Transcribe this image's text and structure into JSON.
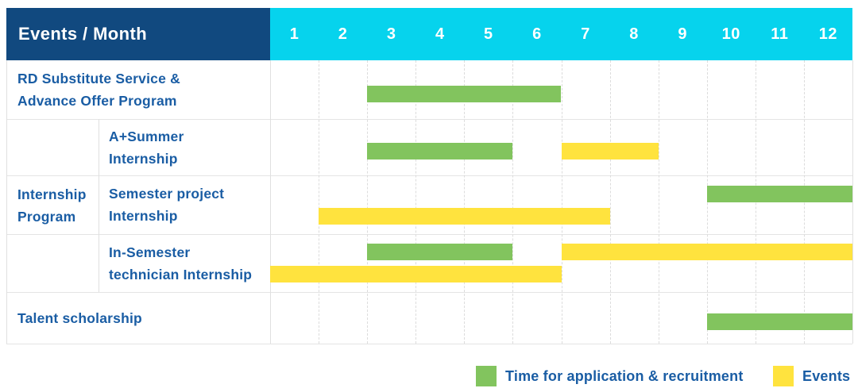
{
  "title_cell": "Events / Month",
  "months": [
    "1",
    "2",
    "3",
    "4",
    "5",
    "6",
    "7",
    "8",
    "9",
    "10",
    "11",
    "12"
  ],
  "group_cell": {
    "label_lines": [
      "Internship",
      "Program"
    ]
  },
  "rows": [
    {
      "id": "rd-substitute-service",
      "group": "",
      "label_lines": [
        "RD Substitute Service &",
        "Advance Offer Program"
      ],
      "bars": [
        {
          "kind": "application",
          "start": 3,
          "end": 6,
          "lane": "single"
        }
      ]
    },
    {
      "id": "a-plus-summer-internship",
      "group": "Internship Program",
      "label_lines": [
        "A+Summer",
        "Internship"
      ],
      "bars": [
        {
          "kind": "application",
          "start": 3,
          "end": 5,
          "lane": "single"
        },
        {
          "kind": "event",
          "start": 7,
          "end": 8,
          "lane": "single"
        }
      ]
    },
    {
      "id": "semester-project-internship",
      "group": "Internship Program",
      "label_lines": [
        "Semester project",
        "Internship"
      ],
      "bars": [
        {
          "kind": "application",
          "start": 10,
          "end": 12,
          "lane": "top"
        },
        {
          "kind": "event",
          "start": 2,
          "end": 7,
          "lane": "bottom"
        }
      ]
    },
    {
      "id": "in-semester-technician-internship",
      "group": "Internship Program",
      "label_lines": [
        "In-Semester",
        "technician Internship"
      ],
      "bars": [
        {
          "kind": "application",
          "start": 3,
          "end": 5,
          "lane": "top"
        },
        {
          "kind": "event",
          "start": 7,
          "end": 12,
          "lane": "top"
        },
        {
          "kind": "event",
          "start": 1,
          "end": 6,
          "lane": "bottom"
        }
      ]
    },
    {
      "id": "talent-scholarship",
      "group": "",
      "label_lines": [
        "Talent scholarship"
      ],
      "bars": [
        {
          "kind": "application",
          "start": 10,
          "end": 12,
          "lane": "single"
        }
      ]
    }
  ],
  "legend": {
    "items": [
      {
        "kind": "application",
        "label": "Time for application & recruitment",
        "color": "#82c45e"
      },
      {
        "kind": "event",
        "label": "Events",
        "color": "#ffe33e"
      }
    ]
  },
  "colors": {
    "header_bg": "#11497f",
    "month_header_bg": "#06d3ed",
    "header_text": "#ffffff",
    "label_text": "#1a5da4",
    "bar_green": "#82c45e",
    "bar_yellow": "#ffe33e",
    "grid": "#e4e4e4"
  },
  "chart_data": {
    "type": "bar",
    "subtype": "gantt-schedule",
    "title": "Events / Month",
    "xlabel": "Month",
    "ylabel": "Events",
    "x_ticks": [
      1,
      2,
      3,
      4,
      5,
      6,
      7,
      8,
      9,
      10,
      11,
      12
    ],
    "x_range": [
      1,
      12
    ],
    "grid": true,
    "legend_position": "bottom-right",
    "categories": [
      "RD Substitute Service & Advance Offer Program",
      "A+Summer Internship",
      "Semester project Internship",
      "In-Semester technician Internship",
      "Talent scholarship"
    ],
    "category_groups": {
      "Internship Program": [
        "A+Summer Internship",
        "Semester project Internship",
        "In-Semester technician Internship"
      ]
    },
    "series": [
      {
        "name": "Time for application & recruitment",
        "color": "#82c45e",
        "bars": [
          {
            "row": "RD Substitute Service & Advance Offer Program",
            "start_month": 3,
            "end_month": 6
          },
          {
            "row": "A+Summer Internship",
            "start_month": 3,
            "end_month": 5
          },
          {
            "row": "Semester project Internship",
            "start_month": 10,
            "end_month": 12
          },
          {
            "row": "In-Semester technician Internship",
            "start_month": 3,
            "end_month": 5
          },
          {
            "row": "Talent scholarship",
            "start_month": 10,
            "end_month": 12
          }
        ]
      },
      {
        "name": "Events",
        "color": "#ffe33e",
        "bars": [
          {
            "row": "A+Summer Internship",
            "start_month": 7,
            "end_month": 8
          },
          {
            "row": "Semester project Internship",
            "start_month": 2,
            "end_month": 7
          },
          {
            "row": "In-Semester technician Internship",
            "start_month": 7,
            "end_month": 12
          },
          {
            "row": "In-Semester technician Internship",
            "start_month": 1,
            "end_month": 6
          }
        ]
      }
    ]
  }
}
